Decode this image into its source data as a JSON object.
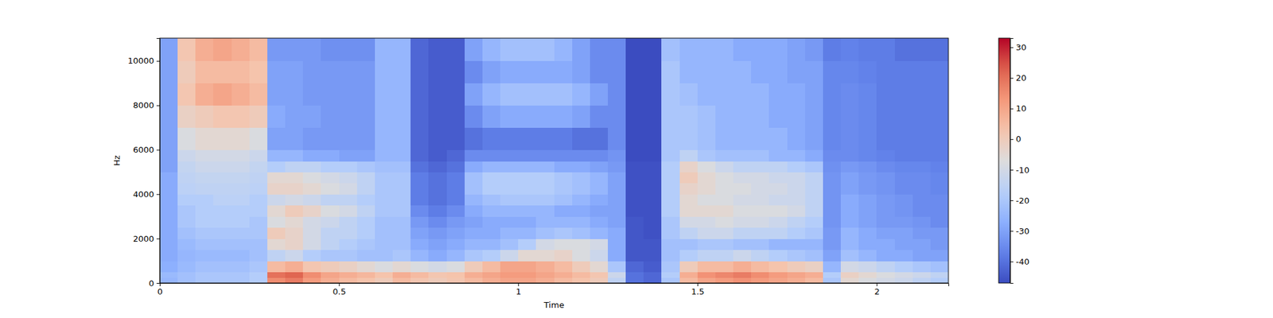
{
  "chart_data": {
    "type": "heatmap",
    "x_label": "Time",
    "y_label": "Hz",
    "xlim": [
      0,
      2.2
    ],
    "ylim": [
      0,
      11025
    ],
    "xticks": [
      0,
      0.5,
      1,
      1.5,
      2
    ],
    "yticks": [
      0,
      2000,
      4000,
      6000,
      8000,
      10000
    ],
    "x_bins": [
      0,
      0.05,
      0.1,
      0.15,
      0.2,
      0.25,
      0.3,
      0.35,
      0.4,
      0.45,
      0.5,
      0.55,
      0.6,
      0.65,
      0.7,
      0.75,
      0.8,
      0.85,
      0.9,
      0.95,
      1,
      1.05,
      1.1,
      1.15,
      1.2,
      1.25,
      1.3,
      1.35,
      1.4,
      1.45,
      1.5,
      1.55,
      1.6,
      1.65,
      1.7,
      1.75,
      1.8,
      1.85,
      1.9,
      1.95,
      2,
      2.05,
      2.1,
      2.15,
      2.2
    ],
    "y_bins": [
      0,
      250,
      500,
      1000,
      1500,
      2000,
      2500,
      3000,
      3500,
      4000,
      4500,
      5000,
      5500,
      6000,
      7000,
      8000,
      9000,
      10000,
      11025
    ],
    "z": [
      [
        -25,
        -22,
        -20,
        -20,
        -20,
        -18,
        15,
        18,
        12,
        8,
        5,
        3,
        0,
        5,
        2,
        0,
        2,
        5,
        8,
        10,
        10,
        8,
        5,
        3,
        0,
        -15,
        -40,
        -42,
        -20,
        5,
        10,
        12,
        14,
        12,
        10,
        8,
        5,
        -20,
        -5,
        -8,
        -10,
        -12,
        -15,
        -18
      ],
      [
        -24,
        -22,
        -20,
        -20,
        -20,
        -18,
        20,
        22,
        15,
        10,
        8,
        6,
        3,
        8,
        5,
        2,
        3,
        8,
        10,
        12,
        12,
        10,
        8,
        5,
        2,
        -12,
        -40,
        -42,
        -18,
        8,
        14,
        16,
        18,
        15,
        12,
        10,
        8,
        -18,
        -2,
        -5,
        -8,
        -10,
        -12,
        -15
      ],
      [
        -27,
        -24,
        -22,
        -22,
        -22,
        -20,
        5,
        8,
        2,
        0,
        -2,
        -5,
        -8,
        -5,
        -8,
        -10,
        -8,
        0,
        5,
        10,
        10,
        8,
        5,
        0,
        -5,
        -20,
        -42,
        -44,
        -20,
        0,
        5,
        5,
        8,
        5,
        3,
        0,
        -2,
        -25,
        -10,
        -12,
        -15,
        -18,
        -20,
        -22
      ],
      [
        -28,
        -25,
        -24,
        -24,
        -24,
        -22,
        -15,
        -12,
        -18,
        -20,
        -20,
        -22,
        -22,
        -20,
        -25,
        -28,
        -25,
        -20,
        -18,
        -12,
        -5,
        -5,
        -3,
        -8,
        -12,
        -28,
        -45,
        -45,
        -22,
        -18,
        -15,
        -15,
        -12,
        -15,
        -18,
        -20,
        -22,
        -30,
        -22,
        -25,
        -28,
        -28,
        -30,
        -30
      ],
      [
        -28,
        -24,
        -22,
        -22,
        -22,
        -22,
        -5,
        -3,
        -10,
        -15,
        -18,
        -20,
        -22,
        -22,
        -28,
        -30,
        -28,
        -25,
        -25,
        -22,
        -18,
        -10,
        -8,
        -8,
        -10,
        -28,
        -45,
        -45,
        -22,
        -22,
        -20,
        -20,
        -22,
        -22,
        -25,
        -25,
        -25,
        -32,
        -25,
        -28,
        -28,
        -30,
        -30,
        -32
      ],
      [
        -28,
        -22,
        -20,
        -20,
        -20,
        -20,
        0,
        -3,
        -10,
        -15,
        -15,
        -18,
        -22,
        -22,
        -30,
        -32,
        -30,
        -28,
        -28,
        -25,
        -25,
        -22,
        -20,
        -22,
        -25,
        -28,
        -45,
        -46,
        -20,
        -15,
        -12,
        -12,
        -15,
        -15,
        -15,
        -18,
        -20,
        -32,
        -25,
        -28,
        -30,
        -30,
        -32,
        -32
      ],
      [
        -28,
        -20,
        -18,
        -18,
        -18,
        -20,
        -8,
        -5,
        -10,
        -12,
        -15,
        -18,
        -22,
        -22,
        -32,
        -35,
        -32,
        -30,
        -28,
        -28,
        -28,
        -25,
        -25,
        -25,
        -28,
        -30,
        -45,
        -46,
        -20,
        -10,
        -10,
        -8,
        -10,
        -10,
        -12,
        -15,
        -18,
        -33,
        -28,
        -30,
        -32,
        -32,
        -33,
        -35
      ],
      [
        -28,
        -20,
        -18,
        -18,
        -18,
        -18,
        -5,
        0,
        -3,
        -8,
        -10,
        -15,
        -20,
        -20,
        -35,
        -38,
        -35,
        -28,
        -25,
        -25,
        -25,
        -25,
        -28,
        -28,
        -30,
        -30,
        -46,
        -46,
        -18,
        -5,
        -5,
        -5,
        -8,
        -8,
        -8,
        -10,
        -15,
        -33,
        -28,
        -30,
        -32,
        -33,
        -35,
        -35
      ],
      [
        -28,
        -18,
        -18,
        -16,
        -16,
        -18,
        -12,
        -10,
        -12,
        -15,
        -15,
        -18,
        -20,
        -20,
        -38,
        -40,
        -38,
        -25,
        -22,
        -20,
        -20,
        -20,
        -22,
        -25,
        -28,
        -30,
        -46,
        -46,
        -18,
        -5,
        -8,
        -8,
        -10,
        -10,
        -12,
        -12,
        -15,
        -33,
        -28,
        -30,
        -32,
        -33,
        -35,
        -35
      ],
      [
        -28,
        -16,
        -15,
        -15,
        -15,
        -16,
        -3,
        -3,
        -5,
        -8,
        -10,
        -15,
        -20,
        -20,
        -38,
        -40,
        -38,
        -22,
        -18,
        -18,
        -18,
        -18,
        -20,
        -22,
        -25,
        -30,
        -46,
        -46,
        -18,
        -3,
        -5,
        -8,
        -8,
        -10,
        -10,
        -12,
        -15,
        -33,
        -30,
        -32,
        -33,
        -35,
        -35,
        -36
      ],
      [
        -28,
        -15,
        -14,
        -14,
        -14,
        -15,
        -5,
        -5,
        -8,
        -10,
        -12,
        -15,
        -20,
        -20,
        -38,
        -40,
        -38,
        -22,
        -18,
        -18,
        -18,
        -18,
        -20,
        -22,
        -25,
        -30,
        -46,
        -46,
        -18,
        0,
        -5,
        -8,
        -10,
        -10,
        -12,
        -12,
        -15,
        -33,
        -30,
        -32,
        -33,
        -35,
        -35,
        -36
      ],
      [
        -30,
        -14,
        -12,
        -12,
        -12,
        -14,
        -18,
        -15,
        -15,
        -18,
        -18,
        -20,
        -22,
        -22,
        -40,
        -42,
        -40,
        -28,
        -25,
        -25,
        -25,
        -25,
        -28,
        -28,
        -30,
        -32,
        -46,
        -46,
        -18,
        -3,
        -8,
        -12,
        -15,
        -15,
        -15,
        -18,
        -20,
        -34,
        -32,
        -33,
        -35,
        -36,
        -36,
        -37
      ],
      [
        -30,
        -12,
        -10,
        -10,
        -10,
        -12,
        -25,
        -25,
        -28,
        -28,
        -30,
        -30,
        -25,
        -25,
        -42,
        -44,
        -42,
        -35,
        -35,
        -35,
        -35,
        -35,
        -35,
        -35,
        -35,
        -33,
        -47,
        -47,
        -20,
        -15,
        -20,
        -22,
        -22,
        -22,
        -25,
        -25,
        -28,
        -35,
        -35,
        -36,
        -37,
        -38,
        -38,
        -38
      ],
      [
        -30,
        -8,
        -5,
        -5,
        -5,
        -8,
        -30,
        -30,
        -32,
        -32,
        -32,
        -32,
        -25,
        -25,
        -42,
        -44,
        -44,
        -40,
        -38,
        -38,
        -38,
        -38,
        -38,
        -40,
        -40,
        -35,
        -47,
        -47,
        -20,
        -20,
        -22,
        -25,
        -25,
        -25,
        -25,
        -28,
        -30,
        -36,
        -35,
        -36,
        -38,
        -38,
        -38,
        -38
      ],
      [
        -30,
        -2,
        0,
        2,
        2,
        0,
        -28,
        -30,
        -30,
        -32,
        -32,
        -32,
        -25,
        -25,
        -42,
        -44,
        -44,
        -35,
        -30,
        -28,
        -28,
        -28,
        -28,
        -30,
        -35,
        -35,
        -47,
        -47,
        -20,
        -20,
        -22,
        -25,
        -25,
        -25,
        -28,
        -28,
        -30,
        -36,
        -35,
        -36,
        -38,
        -38,
        -38,
        -38
      ],
      [
        -30,
        2,
        8,
        10,
        8,
        5,
        -30,
        -30,
        -32,
        -32,
        -32,
        -32,
        -25,
        -25,
        -42,
        -44,
        -44,
        -30,
        -25,
        -22,
        -22,
        -22,
        -22,
        -25,
        -30,
        -35,
        -47,
        -47,
        -20,
        -22,
        -25,
        -25,
        -25,
        -25,
        -28,
        -28,
        -30,
        -36,
        -35,
        -36,
        -38,
        -38,
        -38,
        -38
      ],
      [
        -30,
        0,
        5,
        5,
        5,
        3,
        -30,
        -30,
        -32,
        -32,
        -32,
        -32,
        -25,
        -25,
        -42,
        -44,
        -44,
        -35,
        -30,
        -28,
        -28,
        -28,
        -28,
        -30,
        -35,
        -35,
        -47,
        -47,
        -20,
        -25,
        -25,
        -25,
        -25,
        -28,
        -28,
        -30,
        -30,
        -36,
        -36,
        -37,
        -38,
        -38,
        -38,
        -38
      ],
      [
        -30,
        2,
        8,
        10,
        8,
        5,
        -32,
        -32,
        -32,
        -34,
        -34,
        -34,
        -25,
        -25,
        -42,
        -44,
        -44,
        -30,
        -25,
        -22,
        -22,
        -22,
        -25,
        -30,
        -35,
        -35,
        -47,
        -47,
        -22,
        -25,
        -25,
        -25,
        -28,
        -28,
        -28,
        -30,
        -32,
        -38,
        -37,
        -38,
        -38,
        -40,
        -40,
        -40
      ]
    ],
    "colorbar": {
      "range": [
        -47,
        33
      ],
      "ticks": [
        -40,
        -30,
        -20,
        -10,
        0,
        10,
        20,
        30
      ]
    }
  }
}
